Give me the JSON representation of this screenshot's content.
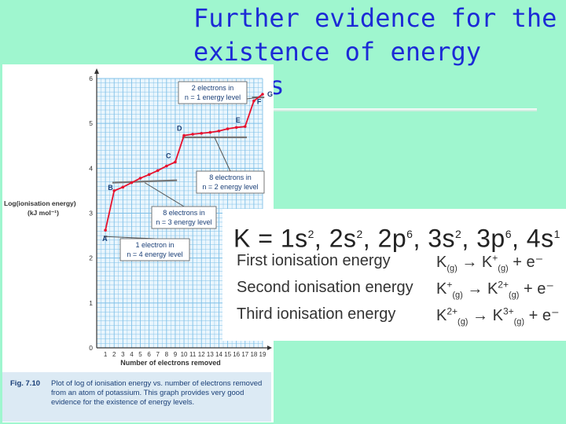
{
  "slide": {
    "title": "Further evidence for the\nexistence of energy levels",
    "stray_mark": "."
  },
  "figure": {
    "caption_label": "Fig. 7.10",
    "caption_text": "Plot of log of ionisation energy vs. number of electrons removed from an atom of potassium. This graph provides very good evidence for the existence of energy levels."
  },
  "chart_data": {
    "type": "line",
    "title": "",
    "xlabel": "Number of electrons removed",
    "ylabel": "Log(ionisation energy)",
    "ylabel_unit": "(kJ mol⁻¹)",
    "x": [
      1,
      2,
      3,
      4,
      5,
      6,
      7,
      8,
      9,
      10,
      11,
      12,
      13,
      14,
      15,
      16,
      17,
      18,
      19
    ],
    "y": [
      2.62,
      3.5,
      3.58,
      3.68,
      3.78,
      3.86,
      3.95,
      4.05,
      4.14,
      4.73,
      4.76,
      4.78,
      4.8,
      4.83,
      4.88,
      4.91,
      4.93,
      5.5,
      5.65
    ],
    "xlim": [
      0,
      19
    ],
    "ylim": [
      0,
      6
    ],
    "x_ticks": [
      "1",
      "2",
      "3",
      "4",
      "5",
      "6",
      "7",
      "8",
      "9",
      "10",
      "11",
      "12",
      "13",
      "14",
      "15",
      "16",
      "17",
      "18",
      "19"
    ],
    "y_ticks": [
      "0",
      "1",
      "2",
      "3",
      "4",
      "5",
      "6"
    ],
    "grid": true,
    "line_color": "#e8112d",
    "grid_color": "#7fc0e8",
    "point_labels": [
      {
        "x": 1,
        "y": 2.62,
        "label": "A"
      },
      {
        "x": 2,
        "y": 3.5,
        "label": "B"
      },
      {
        "x": 9,
        "y": 4.14,
        "label": "C"
      },
      {
        "x": 10,
        "y": 4.73,
        "label": "D"
      },
      {
        "x": 17,
        "y": 4.93,
        "label": "E"
      },
      {
        "x": 18,
        "y": 5.5,
        "label": "F"
      },
      {
        "x": 19,
        "y": 5.65,
        "label": "G"
      }
    ],
    "annotations": [
      {
        "line1": "2 electrons in",
        "line2": "n = 1 energy level",
        "from_x": 17.8,
        "to_x": 19.2,
        "level_y": 5.58
      },
      {
        "line1": "8 electrons in",
        "line2": "n = 2 energy level",
        "from_x": 9.8,
        "to_x": 17.2,
        "level_y": 4.83
      },
      {
        "line1": "8 electrons in",
        "line2": "n = 3 energy level",
        "from_x": 1.8,
        "to_x": 9.2,
        "level_y": 3.82
      },
      {
        "line1": "1 electron in",
        "line2": "n = 4 energy level",
        "from_x": 0.8,
        "to_x": 1.2,
        "level_y": 2.62
      }
    ]
  },
  "configuration": {
    "symbol": "K",
    "equals": "=",
    "terms": [
      {
        "orbital": "1s",
        "count": "2"
      },
      {
        "orbital": "2s",
        "count": "2"
      },
      {
        "orbital": "2p",
        "count": "6"
      },
      {
        "orbital": "3s",
        "count": "2"
      },
      {
        "orbital": "3p",
        "count": "6"
      },
      {
        "orbital": "4s",
        "count": "1"
      }
    ]
  },
  "ionisation": [
    {
      "label": "First ionisation energy",
      "reactant": "K",
      "reactant_charge": "",
      "product": "K",
      "product_charge": "+",
      "state": "(g)",
      "arrow": "→",
      "electron": "+ e⁻"
    },
    {
      "label": "Second ionisation energy",
      "reactant": "K",
      "reactant_charge": "+",
      "product": "K",
      "product_charge": "2+",
      "state": "(g)",
      "arrow": "→",
      "electron": "+ e⁻"
    },
    {
      "label": "Third ionisation energy",
      "reactant": "K",
      "reactant_charge": "2+",
      "product": "K",
      "product_charge": "3+",
      "state": "(g)",
      "arrow": "→",
      "electron": "+ e⁻"
    }
  ]
}
